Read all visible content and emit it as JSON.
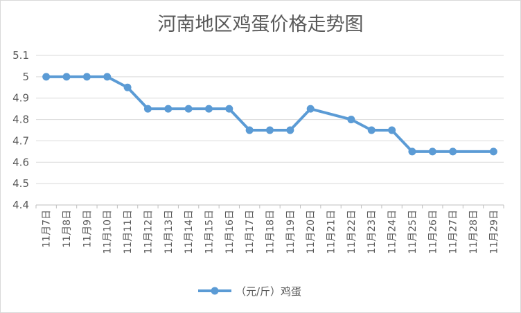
{
  "chart_data": {
    "type": "line",
    "title": "河南地区鸡蛋价格走势图",
    "categories": [
      "11月7日",
      "11月8日",
      "11月9日",
      "11月10日",
      "11月11日",
      "11月12日",
      "11月13日",
      "11月14日",
      "11月15日",
      "11月16日",
      "11月17日",
      "11月18日",
      "11月19日",
      "11月20日",
      "11月21日",
      "11月22日",
      "11月23日",
      "11月24日",
      "11月25日",
      "11月26日",
      "11月27日",
      "11月28日",
      "11月29日"
    ],
    "series": [
      {
        "name": "（元/斤）鸡蛋",
        "color": "#5b9bd5",
        "values": [
          5,
          5,
          5,
          5,
          4.95,
          4.85,
          4.85,
          4.85,
          4.85,
          4.85,
          4.75,
          4.75,
          4.75,
          4.85,
          null,
          4.8,
          4.75,
          4.75,
          4.65,
          4.65,
          4.65,
          null,
          4.65
        ]
      }
    ],
    "ylim": [
      4.4,
      5.1
    ],
    "yticks": [
      "4.4",
      "4.5",
      "4.6",
      "4.7",
      "4.8",
      "4.9",
      "5",
      "5.1"
    ],
    "grid": true,
    "legend_position": "bottom"
  }
}
